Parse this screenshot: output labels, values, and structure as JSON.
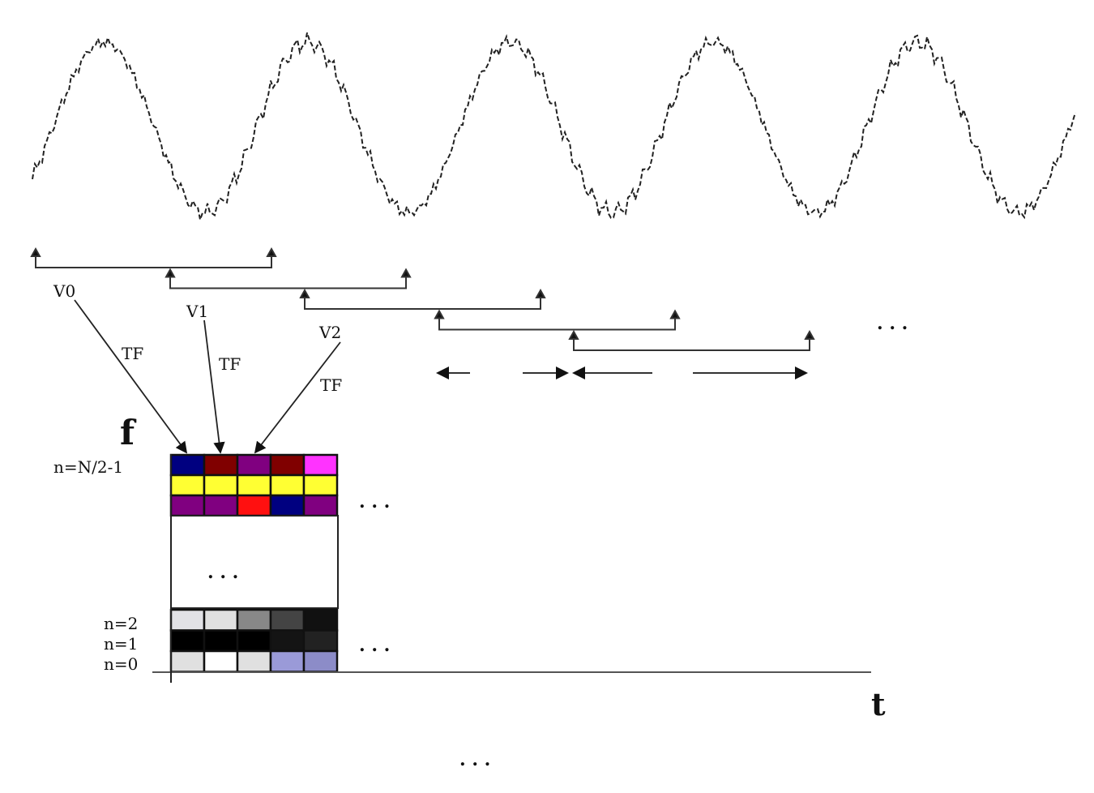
{
  "labels": {
    "windows": [
      "V0",
      "V1",
      "V2"
    ],
    "transform": "TF",
    "freq_axis": "f",
    "time_axis": "t",
    "row_top": "n=N/2-1",
    "row_2": "n=2",
    "row_1": "n=1",
    "row_0": "n=0",
    "ellipsis": ". . ."
  },
  "grid": {
    "top_rows": [
      [
        "#000080",
        "#800000",
        "#800080",
        "#800000",
        "#ff33ff"
      ],
      [
        "#ffff33",
        "#ffff33",
        "#ffff33",
        "#ffff33",
        "#ffff33"
      ],
      [
        "#800080",
        "#800080",
        "#ff1010",
        "#000080",
        "#800080"
      ]
    ],
    "bottom_rows": [
      [
        "#e2e2e6",
        "#e0e0e0",
        "#888888",
        "#444444",
        "#111111"
      ],
      [
        "#000000",
        "#000000",
        "#000000",
        "#141414",
        "#222222"
      ],
      [
        "#e0e0e0",
        "#ffffff",
        "#e0e0e0",
        "#9a9ad8",
        "#8c8cc8"
      ]
    ]
  }
}
